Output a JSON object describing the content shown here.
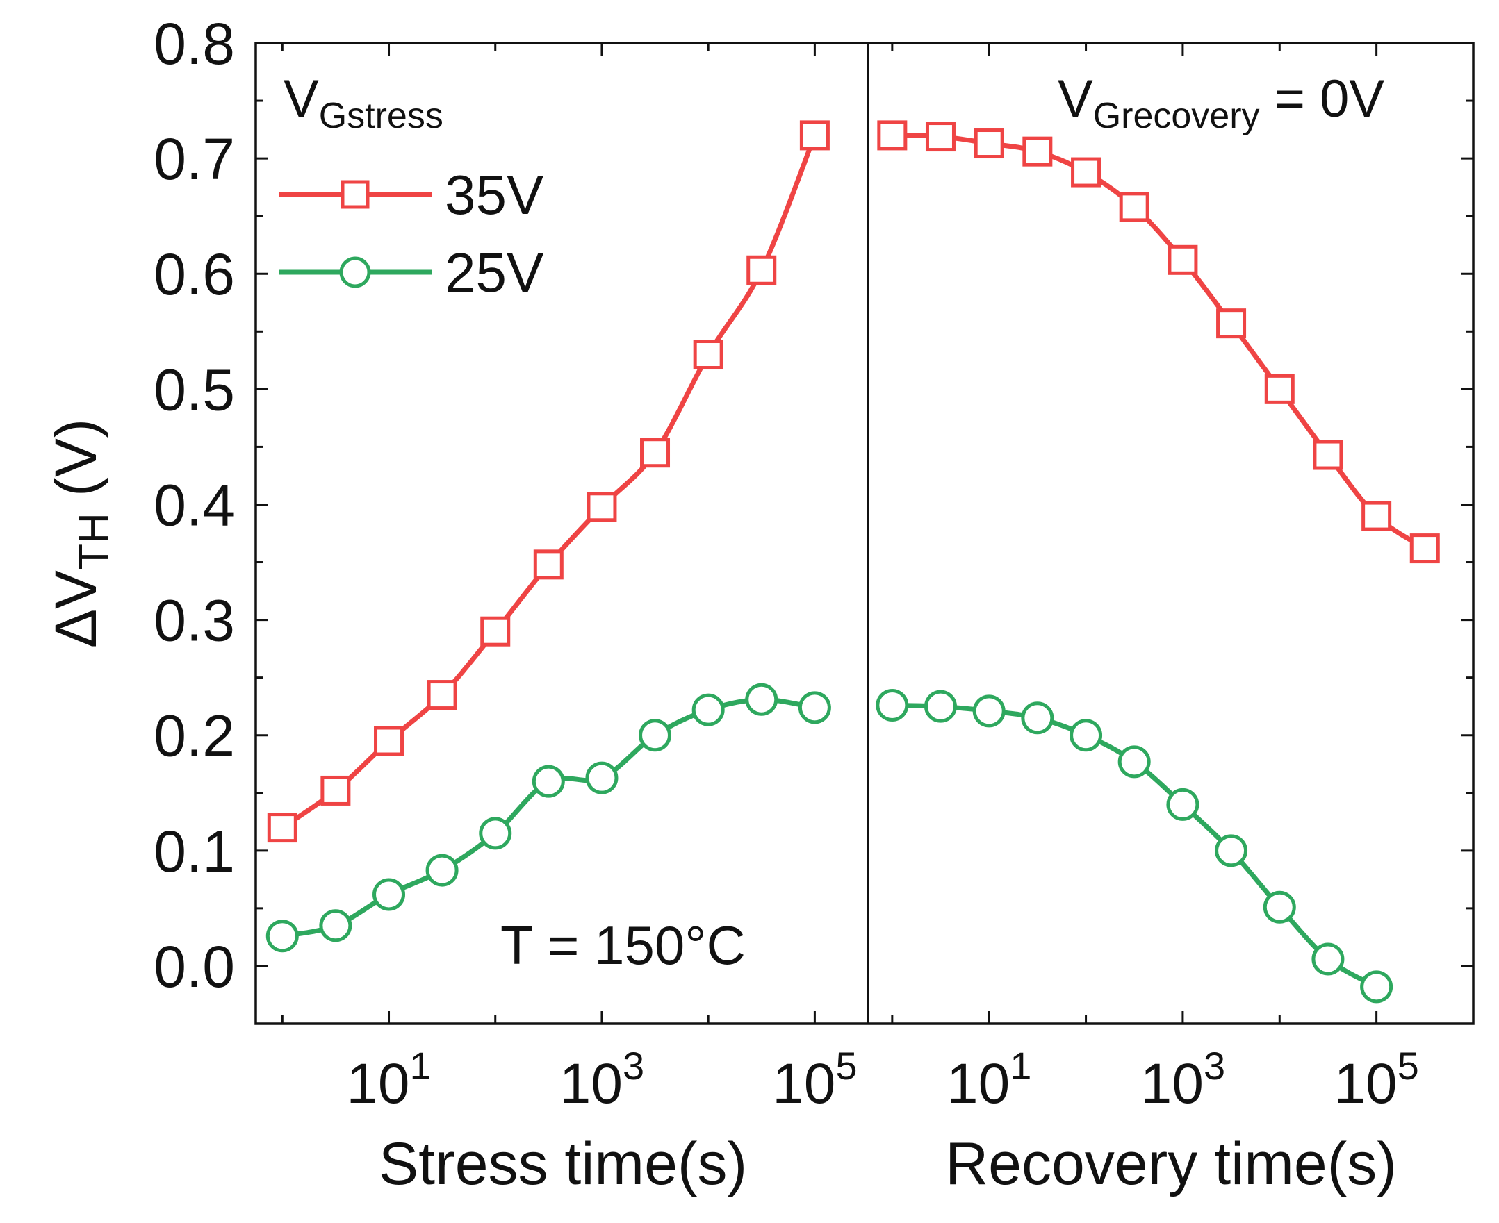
{
  "colors": {
    "red": "#EF4444",
    "green": "#2EA85E",
    "axis": "#111111"
  },
  "legend": {
    "title_main": "V",
    "title_sub": "Gstress",
    "entries": [
      "35V",
      "25V"
    ]
  },
  "annotations": {
    "temperature": "T = 150°C",
    "recovery_main": "V",
    "recovery_sub": "Grecovery",
    "recovery_tail": " = 0V"
  },
  "y_axis": {
    "label_main": "ΔV",
    "label_sub": "TH",
    "label_tail": " (V)",
    "ticks": [
      "0.0",
      "0.1",
      "0.2",
      "0.3",
      "0.4",
      "0.5",
      "0.6",
      "0.7",
      "0.8"
    ]
  },
  "x_tick_labels": {
    "base": "10",
    "exps": [
      "1",
      "3",
      "5"
    ]
  },
  "chart_data": [
    {
      "type": "line",
      "panel": "stress",
      "xlabel": "Stress time(s)",
      "ylabel": "ΔVTH (V)",
      "xscale": "log",
      "xlim_log10": [
        -0.25,
        5.5
      ],
      "ylim": [
        -0.05,
        0.8
      ],
      "series": [
        {
          "name": "35V",
          "marker": "square",
          "x": [
            1,
            3.16,
            10,
            31.6,
            100,
            316,
            1000,
            3160,
            10000,
            31600,
            100000
          ],
          "y": [
            0.12,
            0.152,
            0.195,
            0.235,
            0.29,
            0.348,
            0.398,
            0.445,
            0.53,
            0.603,
            0.72
          ]
        },
        {
          "name": "25V",
          "marker": "circle",
          "x": [
            1,
            3.16,
            10,
            31.6,
            100,
            316,
            1000,
            3160,
            10000,
            31600,
            100000
          ],
          "y": [
            0.026,
            0.035,
            0.062,
            0.083,
            0.115,
            0.16,
            0.163,
            0.2,
            0.222,
            0.231,
            0.224
          ]
        }
      ]
    },
    {
      "type": "line",
      "panel": "recovery",
      "xlabel": "Recovery time(s)",
      "ylabel": "ΔVTH (V)",
      "xscale": "log",
      "xlim_log10": [
        -0.25,
        6.0
      ],
      "ylim": [
        -0.05,
        0.8
      ],
      "series": [
        {
          "name": "35V",
          "marker": "square",
          "x": [
            1,
            3.16,
            10,
            31.6,
            100,
            316,
            1000,
            3160,
            10000,
            31600,
            100000,
            316000
          ],
          "y": [
            0.72,
            0.719,
            0.713,
            0.706,
            0.688,
            0.658,
            0.612,
            0.557,
            0.5,
            0.443,
            0.39,
            0.362
          ]
        },
        {
          "name": "25V",
          "marker": "circle",
          "x": [
            1,
            3.16,
            10,
            31.6,
            100,
            316,
            1000,
            3160,
            10000,
            31600,
            100000
          ],
          "y": [
            0.226,
            0.225,
            0.221,
            0.215,
            0.2,
            0.177,
            0.14,
            0.1,
            0.051,
            0.006,
            -0.018
          ]
        }
      ]
    }
  ]
}
